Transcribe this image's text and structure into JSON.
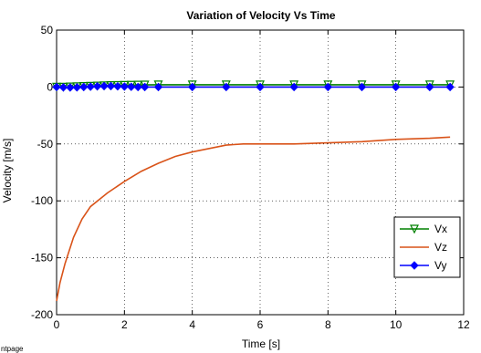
{
  "footer_text": "ntpage",
  "chart_data": {
    "type": "line",
    "title": "Variation of Velocity Vs Time",
    "xlabel": "Time [s]",
    "ylabel": "Velocity [m/s]",
    "xlim": [
      0,
      12
    ],
    "ylim": [
      -200,
      50
    ],
    "xticks": [
      0,
      2,
      4,
      6,
      8,
      10,
      12
    ],
    "yticks": [
      -200,
      -150,
      -100,
      -50,
      0,
      50
    ],
    "grid": true,
    "legend_position": "bottom-right",
    "series": [
      {
        "name": "Vx",
        "color": "#008000",
        "marker": "triangle-down",
        "x": [
          0,
          0.2,
          0.4,
          0.6,
          0.8,
          1.0,
          1.2,
          1.4,
          1.6,
          1.8,
          2.0,
          2.2,
          2.4,
          2.6,
          3,
          4,
          5,
          6,
          7,
          8,
          9,
          10,
          11,
          11.6
        ],
        "y": [
          0,
          0,
          0.2,
          0.4,
          0.6,
          0.8,
          1.0,
          1.2,
          1.4,
          1.5,
          1.6,
          1.7,
          1.8,
          1.9,
          2,
          2,
          2,
          2,
          2,
          2,
          2,
          2,
          2,
          2
        ]
      },
      {
        "name": "Vz",
        "color": "#d95319",
        "marker": "none",
        "x": [
          0,
          0.1,
          0.25,
          0.5,
          0.75,
          1.0,
          1.5,
          2.0,
          2.5,
          3.0,
          3.5,
          4.0,
          4.5,
          5.0,
          5.5,
          6,
          7,
          8,
          9,
          10,
          11,
          11.6
        ],
        "y": [
          -188,
          -172,
          -155,
          -132,
          -116,
          -105,
          -93,
          -83,
          -74,
          -67,
          -61,
          -57,
          -54,
          -51,
          -50,
          -50,
          -50,
          -49,
          -48,
          -46,
          -45,
          -44
        ]
      },
      {
        "name": "Vy",
        "color": "#0000ff",
        "marker": "diamond",
        "x": [
          0,
          0.2,
          0.4,
          0.6,
          0.8,
          1.0,
          1.2,
          1.4,
          1.6,
          1.8,
          2.0,
          2.2,
          2.4,
          2.6,
          3,
          4,
          5,
          6,
          7,
          8,
          9,
          10,
          11,
          11.6
        ],
        "y": [
          0,
          -0.3,
          -0.4,
          -0.3,
          0,
          0.3,
          0.6,
          0.8,
          0.8,
          0.6,
          0.4,
          0.2,
          0,
          0,
          0,
          0,
          0,
          0,
          0,
          0,
          0,
          0,
          0,
          0
        ]
      }
    ]
  }
}
